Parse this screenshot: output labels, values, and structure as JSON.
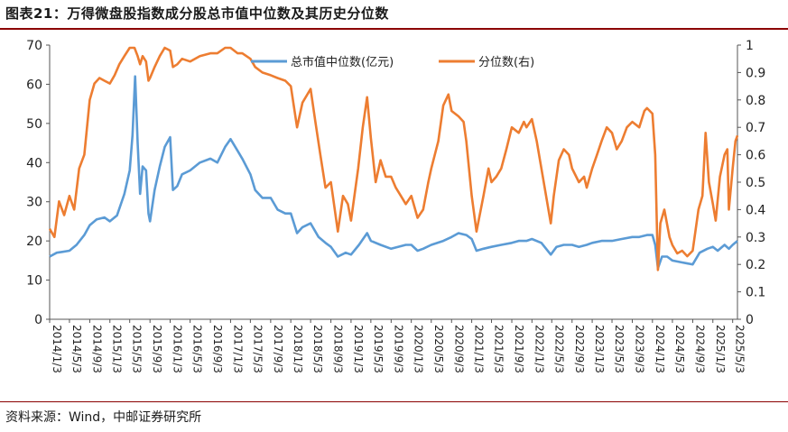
{
  "header": {
    "title": "图表21：万得微盘股指数成分股总市值中位数及其历史分位数"
  },
  "footer": {
    "source": "资料来源：Wind，中邮证券研究所"
  },
  "chart_data": {
    "type": "line",
    "series": [
      {
        "name": "总市值中位数(亿元)",
        "axis": "left",
        "color": "#5b9bd5",
        "points": [
          [
            "2014/1/3",
            16.0
          ],
          [
            "2014/2/15",
            17.0
          ],
          [
            "2014/3/20",
            17.2
          ],
          [
            "2014/5/3",
            17.5
          ],
          [
            "2014/6/15",
            19.0
          ],
          [
            "2014/8/1",
            21.5
          ],
          [
            "2014/9/3",
            24.0
          ],
          [
            "2014/10/15",
            25.5
          ],
          [
            "2014/12/1",
            26.0
          ],
          [
            "2015/1/3",
            25.0
          ],
          [
            "2015/2/15",
            26.5
          ],
          [
            "2015/4/1",
            32.0
          ],
          [
            "2015/5/3",
            38.0
          ],
          [
            "2015/5/20",
            47.0
          ],
          [
            "2015/6/5",
            62.0
          ],
          [
            "2015/6/20",
            45.0
          ],
          [
            "2015/7/5",
            32.0
          ],
          [
            "2015/7/20",
            39.0
          ],
          [
            "2015/8/10",
            38.0
          ],
          [
            "2015/8/25",
            27.0
          ],
          [
            "2015/9/3",
            25.0
          ],
          [
            "2015/10/1",
            33.0
          ],
          [
            "2015/11/1",
            39.0
          ],
          [
            "2015/12/1",
            44.0
          ],
          [
            "2016/1/3",
            46.5
          ],
          [
            "2016/1/20",
            33.0
          ],
          [
            "2016/2/15",
            34.0
          ],
          [
            "2016/3/15",
            37.0
          ],
          [
            "2016/5/3",
            38.0
          ],
          [
            "2016/7/1",
            40.0
          ],
          [
            "2016/9/3",
            41.0
          ],
          [
            "2016/10/15",
            40.0
          ],
          [
            "2016/12/1",
            44.0
          ],
          [
            "2017/1/3",
            46.0
          ],
          [
            "2017/2/15",
            43.0
          ],
          [
            "2017/3/15",
            41.0
          ],
          [
            "2017/5/3",
            37.0
          ],
          [
            "2017/6/1",
            33.0
          ],
          [
            "2017/7/15",
            31.0
          ],
          [
            "2017/9/3",
            31.0
          ],
          [
            "2017/10/15",
            28.0
          ],
          [
            "2017/12/1",
            27.0
          ],
          [
            "2018/1/3",
            27.0
          ],
          [
            "2018/2/10",
            22.0
          ],
          [
            "2018/3/15",
            23.5
          ],
          [
            "2018/5/3",
            24.5
          ],
          [
            "2018/6/20",
            21.0
          ],
          [
            "2018/8/1",
            19.5
          ],
          [
            "2018/9/3",
            18.5
          ],
          [
            "2018/10/15",
            16.0
          ],
          [
            "2018/12/1",
            17.0
          ],
          [
            "2019/1/3",
            16.5
          ],
          [
            "2019/2/20",
            19.0
          ],
          [
            "2019/4/10",
            22.0
          ],
          [
            "2019/5/3",
            20.0
          ],
          [
            "2019/7/1",
            19.0
          ],
          [
            "2019/9/3",
            18.0
          ],
          [
            "2019/10/15",
            18.5
          ],
          [
            "2019/12/1",
            19.0
          ],
          [
            "2020/1/3",
            19.0
          ],
          [
            "2020/2/10",
            17.5
          ],
          [
            "2020/3/15",
            18.0
          ],
          [
            "2020/5/3",
            19.0
          ],
          [
            "2020/7/15",
            20.0
          ],
          [
            "2020/9/3",
            21.0
          ],
          [
            "2020/10/15",
            22.0
          ],
          [
            "2020/12/1",
            21.5
          ],
          [
            "2021/1/3",
            20.5
          ],
          [
            "2021/2/1",
            17.5
          ],
          [
            "2021/3/15",
            18.0
          ],
          [
            "2021/5/3",
            18.5
          ],
          [
            "2021/7/1",
            19.0
          ],
          [
            "2021/9/3",
            19.5
          ],
          [
            "2021/10/15",
            20.0
          ],
          [
            "2021/12/1",
            20.0
          ],
          [
            "2022/1/3",
            20.5
          ],
          [
            "2022/3/1",
            19.5
          ],
          [
            "2022/4/27",
            16.5
          ],
          [
            "2022/6/1",
            18.5
          ],
          [
            "2022/7/15",
            19.0
          ],
          [
            "2022/9/3",
            19.0
          ],
          [
            "2022/10/15",
            18.5
          ],
          [
            "2022/12/1",
            19.0
          ],
          [
            "2023/1/3",
            19.5
          ],
          [
            "2023/3/1",
            20.0
          ],
          [
            "2023/5/3",
            20.0
          ],
          [
            "2023/7/1",
            20.5
          ],
          [
            "2023/9/3",
            21.0
          ],
          [
            "2023/10/15",
            21.0
          ],
          [
            "2023/12/1",
            21.5
          ],
          [
            "2024/1/3",
            21.5
          ],
          [
            "2024/1/20",
            19.0
          ],
          [
            "2024/2/5",
            13.0
          ],
          [
            "2024/3/1",
            16.0
          ],
          [
            "2024/4/1",
            16.0
          ],
          [
            "2024/5/3",
            15.0
          ],
          [
            "2024/7/1",
            14.5
          ],
          [
            "2024/9/3",
            14.0
          ],
          [
            "2024/10/15",
            17.0
          ],
          [
            "2024/12/1",
            18.0
          ],
          [
            "2025/1/3",
            18.5
          ],
          [
            "2025/2/1",
            17.5
          ],
          [
            "2025/3/15",
            19.0
          ],
          [
            "2025/4/10",
            18.0
          ],
          [
            "2025/5/3",
            19.0
          ],
          [
            "2025/6/1",
            20.0
          ]
        ]
      },
      {
        "name": "分位数(右)",
        "axis": "right",
        "color": "#ed7d31",
        "points": [
          [
            "2014/1/3",
            0.33
          ],
          [
            "2014/2/1",
            0.3
          ],
          [
            "2014/3/1",
            0.43
          ],
          [
            "2014/4/1",
            0.38
          ],
          [
            "2014/5/3",
            0.45
          ],
          [
            "2014/6/1",
            0.4
          ],
          [
            "2014/7/1",
            0.55
          ],
          [
            "2014/8/1",
            0.6
          ],
          [
            "2014/9/3",
            0.8
          ],
          [
            "2014/10/1",
            0.86
          ],
          [
            "2014/11/1",
            0.88
          ],
          [
            "2014/12/1",
            0.87
          ],
          [
            "2015/1/3",
            0.86
          ],
          [
            "2015/2/1",
            0.89
          ],
          [
            "2015/3/1",
            0.93
          ],
          [
            "2015/4/1",
            0.96
          ],
          [
            "2015/5/3",
            0.99
          ],
          [
            "2015/6/1",
            0.99
          ],
          [
            "2015/6/20",
            0.96
          ],
          [
            "2015/7/5",
            0.93
          ],
          [
            "2015/7/20",
            0.96
          ],
          [
            "2015/8/10",
            0.94
          ],
          [
            "2015/8/25",
            0.87
          ],
          [
            "2015/9/3",
            0.88
          ],
          [
            "2015/10/1",
            0.92
          ],
          [
            "2015/11/1",
            0.96
          ],
          [
            "2015/12/1",
            0.99
          ],
          [
            "2016/1/3",
            0.98
          ],
          [
            "2016/1/20",
            0.92
          ],
          [
            "2016/2/15",
            0.93
          ],
          [
            "2016/3/15",
            0.95
          ],
          [
            "2016/5/3",
            0.94
          ],
          [
            "2016/7/1",
            0.96
          ],
          [
            "2016/9/3",
            0.97
          ],
          [
            "2016/10/15",
            0.97
          ],
          [
            "2016/12/1",
            0.99
          ],
          [
            "2017/1/3",
            0.99
          ],
          [
            "2017/2/15",
            0.97
          ],
          [
            "2017/3/15",
            0.97
          ],
          [
            "2017/5/3",
            0.95
          ],
          [
            "2017/6/1",
            0.92
          ],
          [
            "2017/7/15",
            0.9
          ],
          [
            "2017/9/3",
            0.89
          ],
          [
            "2017/10/15",
            0.88
          ],
          [
            "2017/12/1",
            0.87
          ],
          [
            "2018/1/3",
            0.85
          ],
          [
            "2018/2/10",
            0.7
          ],
          [
            "2018/3/15",
            0.79
          ],
          [
            "2018/5/3",
            0.84
          ],
          [
            "2018/6/1",
            0.72
          ],
          [
            "2018/7/1",
            0.6
          ],
          [
            "2018/8/1",
            0.48
          ],
          [
            "2018/9/3",
            0.5
          ],
          [
            "2018/10/15",
            0.32
          ],
          [
            "2018/11/15",
            0.45
          ],
          [
            "2018/12/15",
            0.42
          ],
          [
            "2019/1/3",
            0.36
          ],
          [
            "2019/2/15",
            0.55
          ],
          [
            "2019/3/15",
            0.7
          ],
          [
            "2019/4/10",
            0.81
          ],
          [
            "2019/5/3",
            0.66
          ],
          [
            "2019/6/1",
            0.5
          ],
          [
            "2019/7/1",
            0.58
          ],
          [
            "2019/8/1",
            0.52
          ],
          [
            "2019/9/3",
            0.52
          ],
          [
            "2019/10/1",
            0.48
          ],
          [
            "2019/11/1",
            0.45
          ],
          [
            "2019/12/1",
            0.42
          ],
          [
            "2020/1/3",
            0.45
          ],
          [
            "2020/2/10",
            0.37
          ],
          [
            "2020/3/15",
            0.4
          ],
          [
            "2020/4/15",
            0.5
          ],
          [
            "2020/5/3",
            0.55
          ],
          [
            "2020/6/15",
            0.65
          ],
          [
            "2020/7/15",
            0.78
          ],
          [
            "2020/8/15",
            0.82
          ],
          [
            "2020/9/3",
            0.76
          ],
          [
            "2020/10/15",
            0.74
          ],
          [
            "2020/11/15",
            0.72
          ],
          [
            "2020/12/1",
            0.65
          ],
          [
            "2021/1/3",
            0.45
          ],
          [
            "2021/2/1",
            0.32
          ],
          [
            "2021/3/15",
            0.45
          ],
          [
            "2021/4/15",
            0.55
          ],
          [
            "2021/5/3",
            0.5
          ],
          [
            "2021/6/1",
            0.52
          ],
          [
            "2021/7/1",
            0.55
          ],
          [
            "2021/8/1",
            0.62
          ],
          [
            "2021/9/3",
            0.7
          ],
          [
            "2021/10/15",
            0.68
          ],
          [
            "2021/11/15",
            0.72
          ],
          [
            "2021/12/1",
            0.7
          ],
          [
            "2022/1/3",
            0.73
          ],
          [
            "2022/2/1",
            0.65
          ],
          [
            "2022/3/1",
            0.55
          ],
          [
            "2022/4/27",
            0.35
          ],
          [
            "2022/5/15",
            0.45
          ],
          [
            "2022/6/15",
            0.58
          ],
          [
            "2022/7/15",
            0.62
          ],
          [
            "2022/8/15",
            0.6
          ],
          [
            "2022/9/3",
            0.55
          ],
          [
            "2022/10/15",
            0.5
          ],
          [
            "2022/11/15",
            0.52
          ],
          [
            "2022/12/1",
            0.48
          ],
          [
            "2023/1/3",
            0.55
          ],
          [
            "2023/2/1",
            0.6
          ],
          [
            "2023/3/1",
            0.65
          ],
          [
            "2023/4/1",
            0.7
          ],
          [
            "2023/5/3",
            0.68
          ],
          [
            "2023/6/1",
            0.62
          ],
          [
            "2023/7/1",
            0.65
          ],
          [
            "2023/8/1",
            0.7
          ],
          [
            "2023/9/3",
            0.72
          ],
          [
            "2023/10/15",
            0.7
          ],
          [
            "2023/11/15",
            0.76
          ],
          [
            "2023/12/1",
            0.77
          ],
          [
            "2024/1/3",
            0.75
          ],
          [
            "2024/1/20",
            0.6
          ],
          [
            "2024/2/5",
            0.18
          ],
          [
            "2024/2/20",
            0.35
          ],
          [
            "2024/3/15",
            0.4
          ],
          [
            "2024/4/15",
            0.3
          ],
          [
            "2024/5/3",
            0.27
          ],
          [
            "2024/6/1",
            0.24
          ],
          [
            "2024/7/1",
            0.25
          ],
          [
            "2024/8/1",
            0.23
          ],
          [
            "2024/9/3",
            0.25
          ],
          [
            "2024/10/8",
            0.4
          ],
          [
            "2024/11/1",
            0.45
          ],
          [
            "2024/11/20",
            0.68
          ],
          [
            "2024/12/10",
            0.5
          ],
          [
            "2025/1/3",
            0.42
          ],
          [
            "2025/1/20",
            0.36
          ],
          [
            "2025/2/15",
            0.52
          ],
          [
            "2025/3/15",
            0.6
          ],
          [
            "2025/4/1",
            0.62
          ],
          [
            "2025/4/10",
            0.4
          ],
          [
            "2025/5/3",
            0.55
          ],
          [
            "2025/5/20",
            0.65
          ],
          [
            "2025/6/1",
            0.67
          ]
        ]
      }
    ],
    "x_tick_labels": [
      "2014/1/3",
      "2014/5/3",
      "2014/9/3",
      "2015/1/3",
      "2015/5/3",
      "2015/9/3",
      "2016/1/3",
      "2016/5/3",
      "2016/9/3",
      "2017/1/3",
      "2017/5/3",
      "2017/9/3",
      "2018/1/3",
      "2018/5/3",
      "2018/9/3",
      "2019/1/3",
      "2019/5/3",
      "2019/9/3",
      "2020/1/3",
      "2020/5/3",
      "2020/9/3",
      "2021/1/3",
      "2021/5/3",
      "2021/9/3",
      "2022/1/3",
      "2022/5/3",
      "2022/9/3",
      "2023/1/3",
      "2023/5/3",
      "2023/9/3",
      "2024/1/3",
      "2024/5/3",
      "2024/9/3",
      "2025/1/3",
      "2025/5/3"
    ],
    "x_range": [
      "2014/1/3",
      "2025/6/1"
    ],
    "y_left": {
      "range": [
        0,
        70
      ],
      "ticks": [
        0,
        10,
        20,
        30,
        40,
        50,
        60,
        70
      ]
    },
    "y_right": {
      "range": [
        0,
        1
      ],
      "ticks": [
        0,
        0.1,
        0.2,
        0.3,
        0.4,
        0.5,
        0.6,
        0.7,
        0.8,
        0.9,
        1
      ]
    },
    "legend_position": "top-center",
    "grid": false
  }
}
